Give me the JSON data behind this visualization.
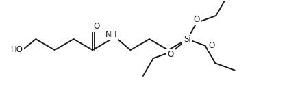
{
  "bg_color": "#ffffff",
  "line_color": "#1a1a1a",
  "line_width": 1.4,
  "font_size": 8.5,
  "figsize": [
    4.38,
    1.46
  ],
  "dpi": 100,
  "xlim": [
    0,
    438
  ],
  "ylim": [
    0,
    146
  ],
  "bonds": [],
  "labels": []
}
